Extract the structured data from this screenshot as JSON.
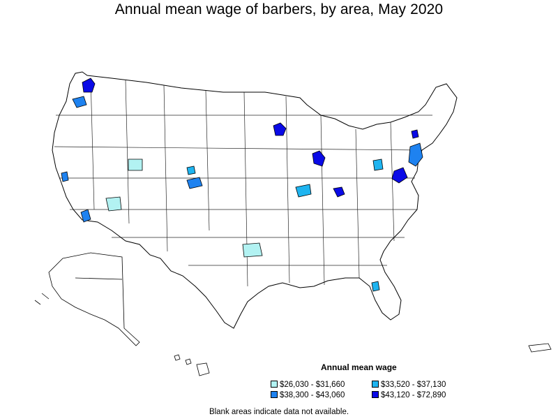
{
  "title": "Annual mean wage of barbers, by area, May 2020",
  "legend": {
    "title": "Annual mean wage",
    "items": [
      {
        "label": "$26,030 - $31,660",
        "color": "#b2f2f2"
      },
      {
        "label": "$33,520 - $37,130",
        "color": "#1eb4f0"
      },
      {
        "label": "$38,300 - $43,060",
        "color": "#1e82f0"
      },
      {
        "label": "$43,120 - $72,890",
        "color": "#0a0ae6"
      }
    ]
  },
  "footnote": "Blank areas indicate data not available.",
  "colors": {
    "border": "#000000",
    "background": "#ffffff"
  }
}
